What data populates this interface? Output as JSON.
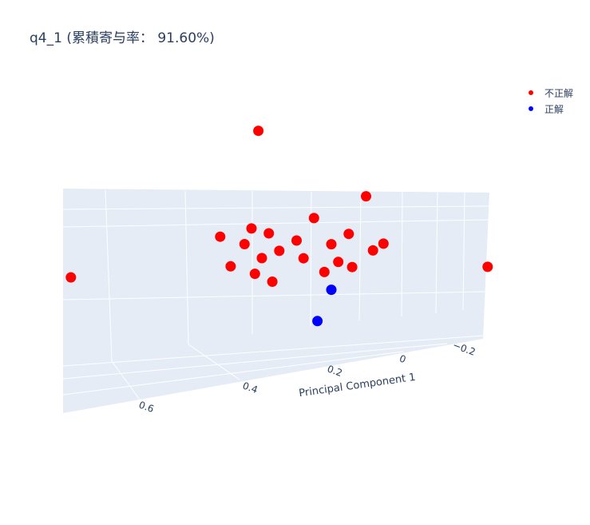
{
  "chart_data": {
    "type": "scatter",
    "title": "q4_1 (累積寄与率： 91.60%)",
    "xlabel": "Principal Component 1",
    "x_ticks": [
      "0.6",
      "0.4",
      "0.2",
      "0",
      "−0.2"
    ],
    "legend_position": "top-right",
    "grid": true,
    "series": [
      {
        "name": "不正解",
        "color": "#ff0000",
        "points": [
          [
            0.41,
            0.52
          ],
          [
            0.52,
            0.18
          ],
          [
            0.49,
            0.08
          ],
          [
            0.45,
            0.15
          ],
          [
            0.43,
            0.2
          ],
          [
            0.42,
            0.05
          ],
          [
            0.4,
            0.1
          ],
          [
            0.38,
            0.18
          ],
          [
            0.37,
            0.02
          ],
          [
            0.35,
            0.12
          ],
          [
            0.3,
            0.15
          ],
          [
            0.28,
            0.09
          ],
          [
            0.25,
            0.22
          ],
          [
            0.22,
            0.04
          ],
          [
            0.2,
            0.13
          ],
          [
            0.18,
            0.07
          ],
          [
            0.15,
            0.16
          ],
          [
            0.14,
            0.05
          ],
          [
            0.1,
            0.28
          ],
          [
            0.08,
            0.1
          ],
          [
            0.05,
            0.12
          ],
          [
            -0.25,
            0.02
          ],
          [
            0.95,
            0.08
          ]
        ]
      },
      {
        "name": "正解",
        "color": "#0000ff",
        "points": [
          [
            0.2,
            -0.02
          ],
          [
            0.24,
            -0.12
          ]
        ]
      }
    ]
  }
}
